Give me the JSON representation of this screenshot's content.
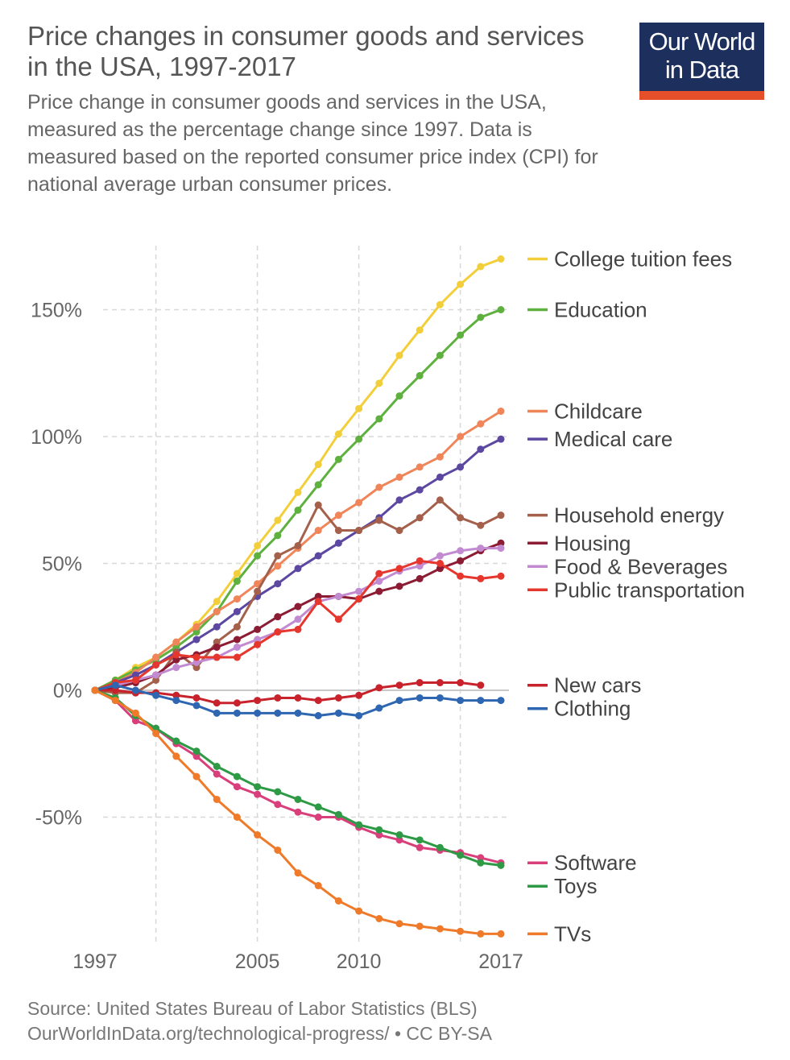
{
  "header": {
    "title": "Price changes in consumer goods and services in the USA, 1997-2017",
    "subtitle": "Price change in consumer goods and services in the USA, measured as the percentage change since 1997. Data is measured based on the reported consumer price index (CPI) for national average urban consumer prices.",
    "logo_line1": "Our World",
    "logo_line2": "in Data"
  },
  "footer": {
    "source": "Source: United States Bureau of Labor Statistics (BLS)",
    "url": "OurWorldInData.org/technological-progress/ • CC BY-SA"
  },
  "chart_data": {
    "type": "line",
    "title": "Price changes in consumer goods and services in the USA, 1997-2017",
    "xlabel": "",
    "ylabel": "",
    "x": [
      1997,
      1998,
      1999,
      2000,
      2001,
      2002,
      2003,
      2004,
      2005,
      2006,
      2007,
      2008,
      2009,
      2010,
      2011,
      2012,
      2013,
      2014,
      2015,
      2016,
      2017
    ],
    "xlim": [
      1997,
      2017
    ],
    "ylim": [
      -100,
      175
    ],
    "x_ticks": [
      "1997",
      "2005",
      "2010",
      "2017"
    ],
    "x_tick_values": [
      1997,
      2005,
      2010,
      2017
    ],
    "y_ticks": [
      "-50%",
      "0%",
      "50%",
      "100%",
      "150%"
    ],
    "y_tick_values": [
      -50,
      0,
      50,
      100,
      150
    ],
    "grid": true,
    "legend": "right, labels at line ends",
    "series": [
      {
        "name": "College tuition fees",
        "color": "#f2cf3a",
        "values": [
          0,
          4,
          9,
          13,
          19,
          26,
          35,
          46,
          57,
          67,
          78,
          89,
          101,
          111,
          121,
          132,
          142,
          152,
          160,
          167,
          170
        ]
      },
      {
        "name": "Education",
        "color": "#5fb13f",
        "values": [
          0,
          4,
          8,
          12,
          17,
          23,
          31,
          43,
          53,
          61,
          71,
          81,
          91,
          99,
          107,
          116,
          124,
          132,
          140,
          147,
          150
        ]
      },
      {
        "name": "Childcare",
        "color": "#f0855a",
        "values": [
          0,
          3,
          7,
          13,
          19,
          25,
          31,
          36,
          42,
          49,
          56,
          63,
          69,
          74,
          80,
          84,
          88,
          92,
          100,
          105,
          110
        ]
      },
      {
        "name": "Medical care",
        "color": "#5c48a0",
        "values": [
          0,
          3,
          6,
          10,
          15,
          20,
          25,
          31,
          37,
          42,
          48,
          53,
          58,
          63,
          68,
          75,
          79,
          84,
          88,
          95,
          99
        ]
      },
      {
        "name": "Household energy",
        "color": "#a5604b",
        "values": [
          0,
          -1,
          -1,
          4,
          15,
          9,
          19,
          25,
          39,
          53,
          57,
          73,
          63,
          63,
          67,
          63,
          68,
          75,
          68,
          65,
          69
        ]
      },
      {
        "name": "Housing",
        "color": "#8c1c33",
        "values": [
          0,
          1,
          3,
          6,
          12,
          14,
          17,
          20,
          24,
          29,
          33,
          37,
          37,
          36,
          39,
          41,
          44,
          48,
          51,
          55,
          58
        ]
      },
      {
        "name": "Food & Beverages",
        "color": "#c28bd1",
        "values": [
          0,
          2,
          4,
          6,
          9,
          11,
          13,
          17,
          20,
          23,
          28,
          35,
          37,
          39,
          43,
          47,
          49,
          53,
          55,
          56,
          56
        ]
      },
      {
        "name": "Public transportation",
        "color": "#e6372e",
        "values": [
          0,
          3,
          4,
          10,
          14,
          13,
          13,
          13,
          18,
          23,
          24,
          35,
          28,
          36,
          46,
          48,
          51,
          50,
          45,
          44,
          45
        ]
      },
      {
        "name": "New cars",
        "color": "#c8232c",
        "values": [
          0,
          0,
          -1,
          -1,
          -2,
          -3,
          -5,
          -5,
          -4,
          -3,
          -3,
          -4,
          -3,
          -2,
          1,
          2,
          3,
          3,
          3,
          2,
          null
        ]
      },
      {
        "name": "Clothing",
        "color": "#2f66b1",
        "values": [
          0,
          2,
          0,
          -2,
          -4,
          -6,
          -9,
          -9,
          -9,
          -9,
          -9,
          -10,
          -9,
          -10,
          -7,
          -4,
          -3,
          -3,
          -4,
          -4,
          -4
        ]
      },
      {
        "name": "Software",
        "color": "#d83f7b",
        "values": [
          0,
          -4,
          -12,
          -15,
          -21,
          -26,
          -33,
          -38,
          -41,
          -45,
          -48,
          -50,
          -50,
          -54,
          -57,
          -59,
          -62,
          -63,
          -64,
          -66,
          -68
        ]
      },
      {
        "name": "Toys",
        "color": "#2e9a45",
        "values": [
          0,
          -3,
          -10,
          -15,
          -20,
          -24,
          -30,
          -34,
          -38,
          -40,
          -43,
          -46,
          -49,
          -53,
          -55,
          -57,
          -59,
          -62,
          -65,
          -68,
          -69
        ]
      },
      {
        "name": "TVs",
        "color": "#ef7a2a",
        "values": [
          0,
          -4,
          -9,
          -17,
          -26,
          -34,
          -43,
          -50,
          -57,
          -63,
          -72,
          -77,
          -83,
          -87,
          -90,
          -92,
          -93,
          -94,
          -95,
          -96,
          -96
        ]
      }
    ]
  }
}
